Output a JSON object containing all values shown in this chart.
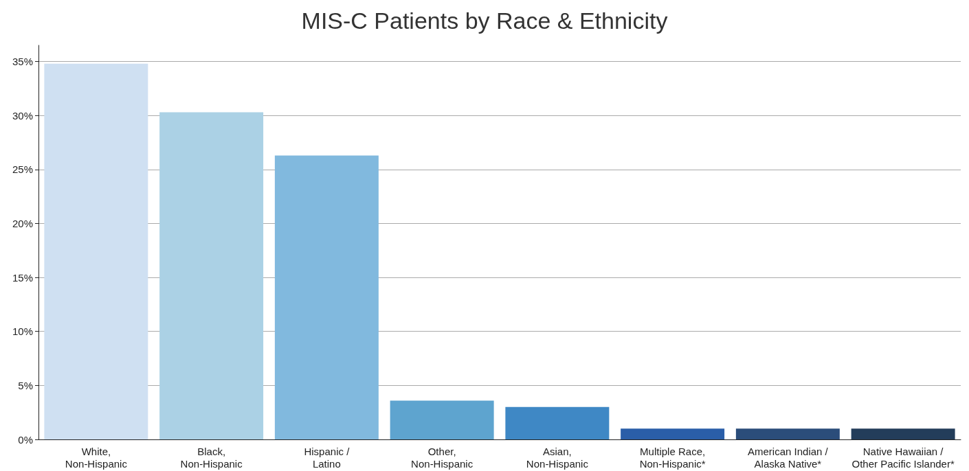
{
  "chart_data": {
    "type": "bar",
    "title": "MIS-C Patients by Race & Ethnicity",
    "categories": [
      "White,\nNon-Hispanic",
      "Black,\nNon-Hispanic",
      "Hispanic /\nLatino",
      "Other,\nNon-Hispanic",
      "Asian,\nNon-Hispanic",
      "Multiple Race,\nNon-Hispanic*",
      "American Indian /\nAlaska Native*",
      "Native Hawaiian /\nOther Pacific Islander*"
    ],
    "values": [
      34.8,
      30.3,
      26.3,
      3.6,
      3.0,
      1.0,
      1.0,
      1.0
    ],
    "colors": [
      "#cfe0f2",
      "#abd1e5",
      "#81b9de",
      "#5ea4cf",
      "#3f88c5",
      "#2a5ea8",
      "#2b4d7a",
      "#233d5a"
    ],
    "ylim": [
      0,
      36.5
    ],
    "yticks": [
      {
        "value": 0,
        "label": "0%"
      },
      {
        "value": 5,
        "label": "5%"
      },
      {
        "value": 10,
        "label": "10%"
      },
      {
        "value": 15,
        "label": "15%"
      },
      {
        "value": 20,
        "label": "20%"
      },
      {
        "value": 25,
        "label": "25%"
      },
      {
        "value": 30,
        "label": "30%"
      },
      {
        "value": 35,
        "label": "35%"
      }
    ],
    "grid": "y"
  }
}
